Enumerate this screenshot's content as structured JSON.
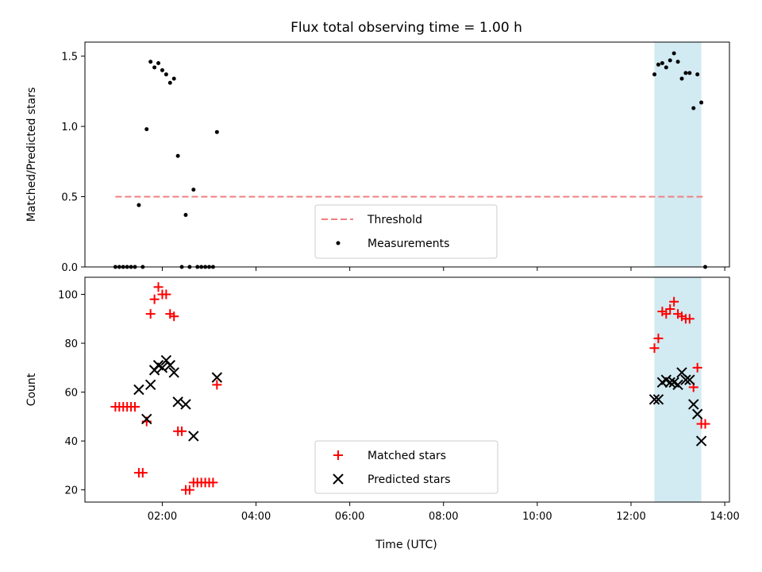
{
  "chart_data": [
    {
      "type": "scatter",
      "title": "Flux total observing time = 1.00 h",
      "xlabel": "",
      "ylabel": "Matched/Predicted stars",
      "xlim": [
        "00:21",
        "14:06"
      ],
      "ylim": [
        0,
        1.6
      ],
      "yticks": [
        0.0,
        0.5,
        1.0,
        1.5
      ],
      "ytick_labels": [
        "0.0",
        "0.5",
        "1.0",
        "1.5"
      ],
      "grid": false,
      "legend_placement": "lower-center",
      "shaded_interval": {
        "start": "12:30",
        "end": "13:30",
        "color": "#add8e6"
      },
      "threshold": {
        "name": "Threshold",
        "value": 0.5,
        "x_start": "01:00",
        "x_end": "13:32",
        "color": "#f08080",
        "style": "dashed"
      },
      "series": [
        {
          "name": "Measurements",
          "color": "#000000",
          "marker": "dot",
          "points": [
            [
              "01:00",
              0.0
            ],
            [
              "01:05",
              0.0
            ],
            [
              "01:10",
              0.0
            ],
            [
              "01:15",
              0.0
            ],
            [
              "01:20",
              0.0
            ],
            [
              "01:25",
              0.0
            ],
            [
              "01:30",
              0.44
            ],
            [
              "01:35",
              0.0
            ],
            [
              "01:40",
              0.98
            ],
            [
              "01:45",
              1.46
            ],
            [
              "01:50",
              1.42
            ],
            [
              "01:55",
              1.45
            ],
            [
              "02:00",
              1.4
            ],
            [
              "02:05",
              1.37
            ],
            [
              "02:10",
              1.31
            ],
            [
              "02:15",
              1.34
            ],
            [
              "02:20",
              0.79
            ],
            [
              "02:25",
              0.0
            ],
            [
              "02:30",
              0.37
            ],
            [
              "02:35",
              0.0
            ],
            [
              "02:40",
              0.55
            ],
            [
              "02:45",
              0.0
            ],
            [
              "02:50",
              0.0
            ],
            [
              "02:55",
              0.0
            ],
            [
              "03:00",
              0.0
            ],
            [
              "03:05",
              0.0
            ],
            [
              "03:10",
              0.96
            ],
            [
              "12:30",
              1.37
            ],
            [
              "12:35",
              1.44
            ],
            [
              "12:40",
              1.45
            ],
            [
              "12:45",
              1.42
            ],
            [
              "12:50",
              1.47
            ],
            [
              "12:55",
              1.52
            ],
            [
              "13:00",
              1.46
            ],
            [
              "13:05",
              1.34
            ],
            [
              "13:10",
              1.38
            ],
            [
              "13:15",
              1.38
            ],
            [
              "13:20",
              1.13
            ],
            [
              "13:25",
              1.37
            ],
            [
              "13:30",
              1.17
            ],
            [
              "13:35",
              0.0
            ]
          ]
        }
      ],
      "legend": [
        {
          "label": "Threshold",
          "kind": "dashed-line",
          "color": "#f08080"
        },
        {
          "label": "Measurements",
          "kind": "dot",
          "color": "#000000"
        }
      ]
    },
    {
      "type": "scatter",
      "title": "",
      "xlabel": "Time (UTC)",
      "ylabel": "Count",
      "xlim": [
        "00:21",
        "14:06"
      ],
      "ylim": [
        15,
        107
      ],
      "xticks": [
        "02:00",
        "04:00",
        "06:00",
        "08:00",
        "10:00",
        "12:00",
        "14:00"
      ],
      "yticks": [
        20,
        40,
        60,
        80,
        100
      ],
      "ytick_labels": [
        "20",
        "40",
        "60",
        "80",
        "100"
      ],
      "grid": false,
      "legend_placement": "lower-center",
      "shaded_interval": {
        "start": "12:30",
        "end": "13:30",
        "color": "#add8e6"
      },
      "series": [
        {
          "name": "Matched stars",
          "color": "#ff0000",
          "marker": "plus",
          "points": [
            [
              "01:00",
              54
            ],
            [
              "01:05",
              54
            ],
            [
              "01:10",
              54
            ],
            [
              "01:15",
              54
            ],
            [
              "01:20",
              54
            ],
            [
              "01:25",
              54
            ],
            [
              "01:30",
              27
            ],
            [
              "01:35",
              27
            ],
            [
              "01:40",
              48
            ],
            [
              "01:45",
              92
            ],
            [
              "01:50",
              98
            ],
            [
              "01:55",
              103
            ],
            [
              "02:00",
              100
            ],
            [
              "02:05",
              100
            ],
            [
              "02:10",
              92
            ],
            [
              "02:15",
              91
            ],
            [
              "02:20",
              44
            ],
            [
              "02:25",
              44
            ],
            [
              "02:30",
              20
            ],
            [
              "02:35",
              20
            ],
            [
              "02:40",
              23
            ],
            [
              "02:45",
              23
            ],
            [
              "02:50",
              23
            ],
            [
              "02:55",
              23
            ],
            [
              "03:00",
              23
            ],
            [
              "03:05",
              23
            ],
            [
              "03:10",
              63
            ],
            [
              "12:30",
              78
            ],
            [
              "12:35",
              82
            ],
            [
              "12:40",
              93
            ],
            [
              "12:45",
              92
            ],
            [
              "12:50",
              94
            ],
            [
              "12:55",
              97
            ],
            [
              "13:00",
              92
            ],
            [
              "13:05",
              91
            ],
            [
              "13:10",
              90
            ],
            [
              "13:15",
              90
            ],
            [
              "13:20",
              62
            ],
            [
              "13:25",
              70
            ],
            [
              "13:30",
              47
            ],
            [
              "13:35",
              47
            ]
          ]
        },
        {
          "name": "Predicted stars",
          "color": "#000000",
          "marker": "x",
          "points": [
            [
              "01:30",
              61
            ],
            [
              "01:40",
              49
            ],
            [
              "01:45",
              63
            ],
            [
              "01:50",
              69
            ],
            [
              "01:55",
              71
            ],
            [
              "02:00",
              70
            ],
            [
              "02:05",
              73
            ],
            [
              "02:10",
              71
            ],
            [
              "02:15",
              68
            ],
            [
              "02:20",
              56
            ],
            [
              "02:30",
              55
            ],
            [
              "02:40",
              42
            ],
            [
              "03:10",
              66
            ],
            [
              "12:30",
              57
            ],
            [
              "12:35",
              57
            ],
            [
              "12:40",
              64
            ],
            [
              "12:45",
              65
            ],
            [
              "12:50",
              64
            ],
            [
              "12:55",
              64
            ],
            [
              "13:00",
              63
            ],
            [
              "13:05",
              68
            ],
            [
              "13:10",
              65
            ],
            [
              "13:15",
              65
            ],
            [
              "13:20",
              55
            ],
            [
              "13:25",
              51
            ],
            [
              "13:30",
              40
            ]
          ]
        }
      ],
      "legend": [
        {
          "label": "Matched stars",
          "kind": "plus",
          "color": "#ff0000"
        },
        {
          "label": "Predicted stars",
          "kind": "x",
          "color": "#000000"
        }
      ]
    }
  ]
}
